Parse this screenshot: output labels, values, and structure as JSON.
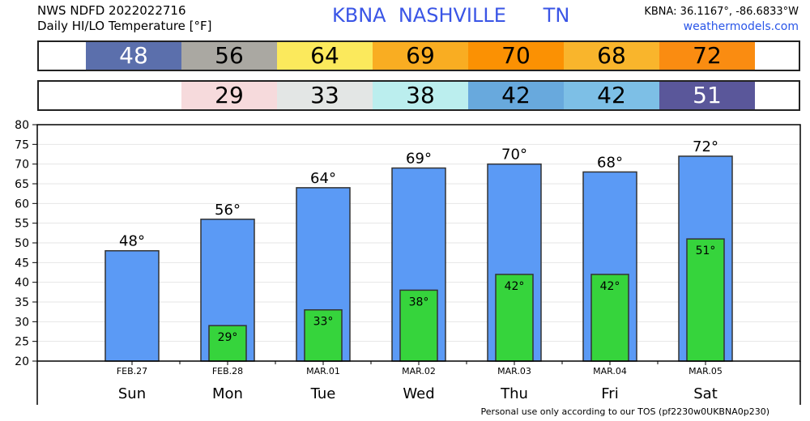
{
  "header": {
    "line1": "NWS NDFD 2022022716",
    "line2": "Daily HI/LO Temperature [°F]",
    "station": "KBNA  NASHVILLE      TN",
    "coords": "KBNA: 36.1167°, -86.6833°W",
    "site": "weathermodels.com"
  },
  "footer": "Personal use only according to our TOS (pf2230w0UKBNA0p230)",
  "hi_band": [
    {
      "text": "48",
      "bg": "#5b6fac",
      "fg": "#ffffff"
    },
    {
      "text": "56",
      "bg": "#aaa8a2",
      "fg": "#000000"
    },
    {
      "text": "64",
      "bg": "#fbe95c",
      "fg": "#000000"
    },
    {
      "text": "69",
      "bg": "#f9ad22",
      "fg": "#000000"
    },
    {
      "text": "70",
      "bg": "#fb9103",
      "fg": "#000000"
    },
    {
      "text": "68",
      "bg": "#f9b52c",
      "fg": "#000000"
    },
    {
      "text": "72",
      "bg": "#fa8c11",
      "fg": "#000000"
    }
  ],
  "lo_band": [
    {
      "text": "",
      "bg": "#ffffff",
      "fg": "#000000"
    },
    {
      "text": "29",
      "bg": "#f6dadc",
      "fg": "#000000"
    },
    {
      "text": "33",
      "bg": "#e3e6e5",
      "fg": "#000000"
    },
    {
      "text": "38",
      "bg": "#bbeeee",
      "fg": "#000000"
    },
    {
      "text": "42",
      "bg": "#68a9dd",
      "fg": "#000000"
    },
    {
      "text": "42",
      "bg": "#7dbfe6",
      "fg": "#000000"
    },
    {
      "text": "51",
      "bg": "#5a579a",
      "fg": "#ffffff"
    }
  ],
  "chart_data": {
    "type": "bar",
    "categories": [
      "Sun",
      "Mon",
      "Tue",
      "Wed",
      "Thu",
      "Fri",
      "Sat"
    ],
    "dates": [
      "FEB.27",
      "FEB.28",
      "MAR.01",
      "MAR.02",
      "MAR.03",
      "MAR.04",
      "MAR.05"
    ],
    "series": [
      {
        "values": [
          48,
          56,
          64,
          69,
          70,
          68,
          72
        ],
        "color": "#5b9af5"
      },
      {
        "values": [
          null,
          29,
          33,
          38,
          42,
          42,
          51
        ],
        "color": "#36d43c"
      }
    ],
    "hi_labels": [
      "48°",
      "56°",
      "64°",
      "69°",
      "70°",
      "68°",
      "72°"
    ],
    "lo_labels": [
      "",
      "29°",
      "33°",
      "38°",
      "42°",
      "42°",
      "51°"
    ],
    "ylim": [
      20,
      80
    ],
    "yticks": [
      "20",
      "25",
      "30",
      "35",
      "40",
      "45",
      "50",
      "55",
      "60",
      "65",
      "70",
      "75",
      "80"
    ]
  }
}
